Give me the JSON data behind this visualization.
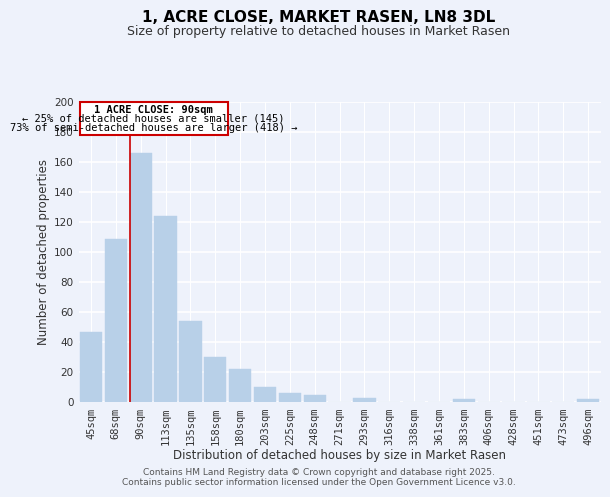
{
  "title": "1, ACRE CLOSE, MARKET RASEN, LN8 3DL",
  "subtitle": "Size of property relative to detached houses in Market Rasen",
  "xlabel": "Distribution of detached houses by size in Market Rasen",
  "ylabel": "Number of detached properties",
  "categories": [
    "45sqm",
    "68sqm",
    "90sqm",
    "113sqm",
    "135sqm",
    "158sqm",
    "180sqm",
    "203sqm",
    "225sqm",
    "248sqm",
    "271sqm",
    "293sqm",
    "316sqm",
    "338sqm",
    "361sqm",
    "383sqm",
    "406sqm",
    "428sqm",
    "451sqm",
    "473sqm",
    "496sqm"
  ],
  "values": [
    47,
    109,
    166,
    124,
    54,
    30,
    22,
    10,
    6,
    5,
    0,
    3,
    0,
    0,
    0,
    2,
    0,
    0,
    0,
    0,
    2
  ],
  "bar_color": "#b8d0e8",
  "bar_edge_color": "#b8d0e8",
  "marker_line_index": 2,
  "marker_label": "1 ACRE CLOSE: 90sqm",
  "annotation_line1": "← 25% of detached houses are smaller (145)",
  "annotation_line2": "73% of semi-detached houses are larger (418) →",
  "marker_color": "#cc0000",
  "ylim": [
    0,
    200
  ],
  "yticks": [
    0,
    20,
    40,
    60,
    80,
    100,
    120,
    140,
    160,
    180,
    200
  ],
  "footer1": "Contains HM Land Registry data © Crown copyright and database right 2025.",
  "footer2": "Contains public sector information licensed under the Open Government Licence v3.0.",
  "bg_color": "#eef2fb",
  "grid_color": "#ffffff",
  "title_fontsize": 11,
  "subtitle_fontsize": 9,
  "axis_label_fontsize": 8.5,
  "tick_fontsize": 7.5,
  "footer_fontsize": 6.5
}
